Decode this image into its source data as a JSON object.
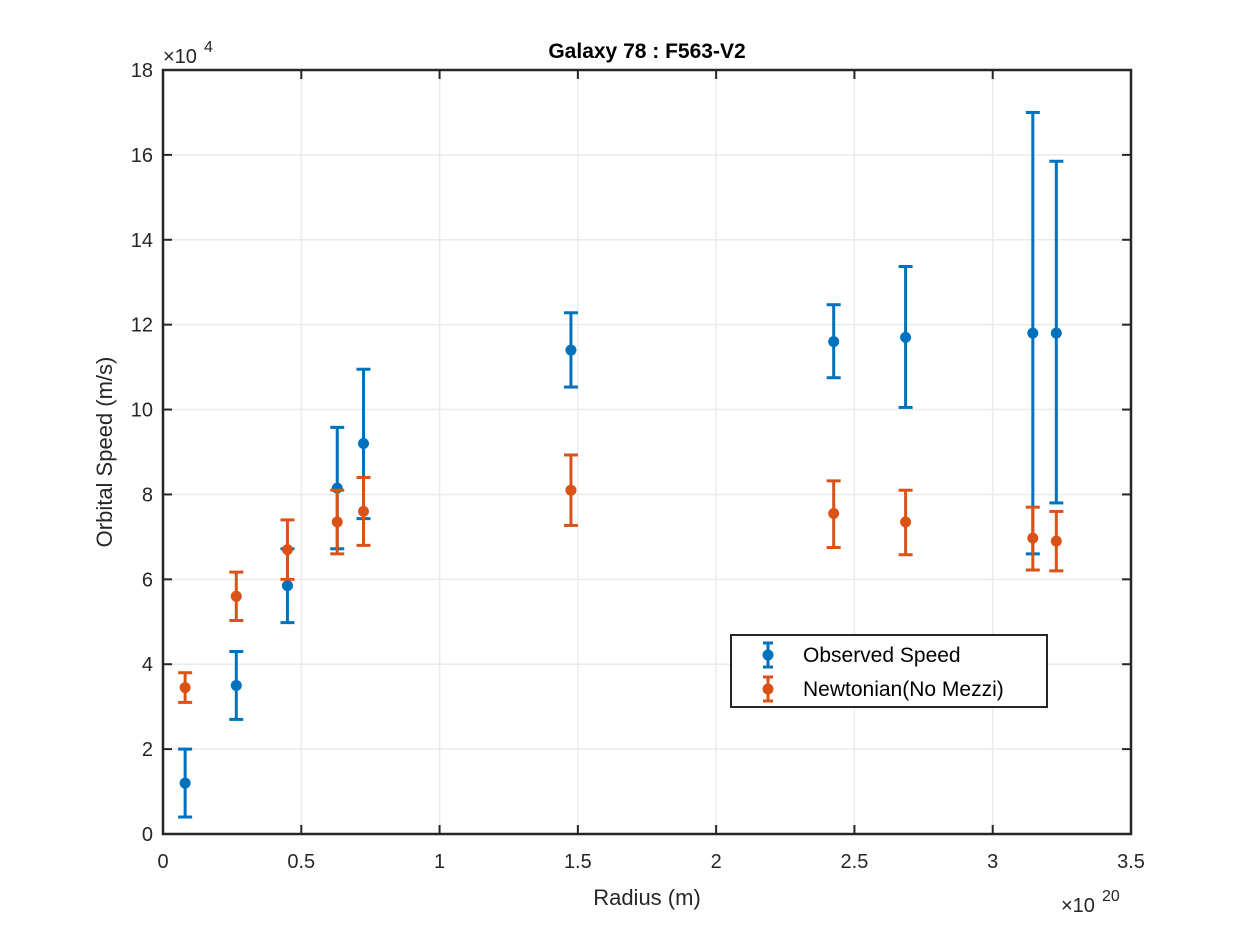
{
  "chart_data": {
    "type": "scatter",
    "title": "Galaxy 78 : F563-V2",
    "xlabel": "Radius (m)",
    "ylabel": "Orbital Speed (m/s)",
    "x_exponent": {
      "base": "×10",
      "power": "20"
    },
    "y_exponent": {
      "base": "×10",
      "power": "4"
    },
    "xlim": [
      0,
      3.5
    ],
    "ylim": [
      0,
      18
    ],
    "xticks": [
      0,
      0.5,
      1,
      1.5,
      2,
      2.5,
      3,
      3.5
    ],
    "xtick_labels": [
      "0",
      "0.5",
      "1",
      "1.5",
      "2",
      "2.5",
      "3",
      "3.5"
    ],
    "yticks": [
      0,
      2,
      4,
      6,
      8,
      10,
      12,
      14,
      16,
      18
    ],
    "ytick_labels": [
      "0",
      "2",
      "4",
      "6",
      "8",
      "10",
      "12",
      "14",
      "16",
      "18"
    ],
    "grid": true,
    "legend_position": "lower-right",
    "series": [
      {
        "name": "Observed Speed",
        "color": "#0072BD",
        "x": [
          0.08,
          0.265,
          0.45,
          0.63,
          0.725,
          1.475,
          2.425,
          2.685,
          3.145,
          3.23
        ],
        "y": [
          1.2,
          3.5,
          5.85,
          8.15,
          9.2,
          11.4,
          11.6,
          11.7,
          11.8,
          11.8
        ],
        "err_low": [
          0.8,
          0.8,
          0.87,
          1.43,
          1.77,
          0.87,
          0.85,
          1.65,
          5.2,
          4.0
        ],
        "err_high": [
          0.8,
          0.8,
          0.87,
          1.43,
          1.75,
          0.88,
          0.87,
          1.67,
          5.2,
          4.05
        ]
      },
      {
        "name": "Newtonian(No Mezzi)",
        "color": "#D95319",
        "x": [
          0.08,
          0.265,
          0.45,
          0.63,
          0.725,
          1.475,
          2.425,
          2.685,
          3.145,
          3.23
        ],
        "y": [
          3.45,
          5.6,
          6.7,
          7.35,
          7.6,
          8.1,
          7.55,
          7.35,
          6.97,
          6.9
        ],
        "err_low": [
          0.35,
          0.57,
          0.7,
          0.75,
          0.8,
          0.83,
          0.8,
          0.77,
          0.75,
          0.7
        ],
        "err_high": [
          0.35,
          0.57,
          0.7,
          0.75,
          0.8,
          0.83,
          0.77,
          0.75,
          0.73,
          0.7
        ]
      }
    ]
  }
}
